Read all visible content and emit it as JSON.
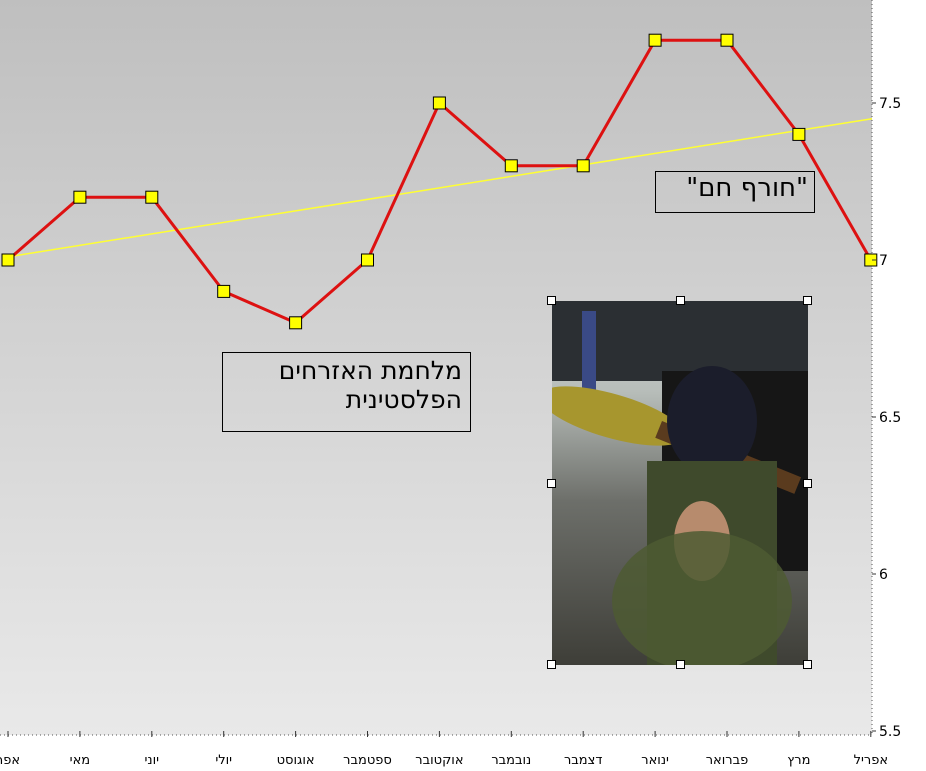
{
  "chart_data": {
    "type": "line",
    "categories": [
      "אפר",
      "מאי",
      "יוני",
      "יולי",
      "אוגוסט",
      "ספטמבר",
      "אוקטובר",
      "נובמבר",
      "דצמבר",
      "ינואר",
      "פברואר",
      "מרץ",
      "אפריל"
    ],
    "series": [
      {
        "values": [
          7.0,
          7.2,
          7.2,
          6.9,
          6.8,
          7.0,
          7.5,
          7.3,
          7.3,
          7.7,
          7.7,
          7.4,
          7.0
        ],
        "color": "#dd1111"
      }
    ],
    "trendline": {
      "start": 7.01,
      "end": 7.45,
      "color": "#ffff33"
    },
    "y_ticks": [
      "5.5",
      "6",
      "6.5",
      "7",
      "7.5"
    ],
    "ylim": [
      5.5,
      7.8
    ],
    "y_axis_side": "right",
    "marker_color": "#ffff00",
    "grid": false,
    "annotations": [
      {
        "text": "\"חורף חם\""
      },
      {
        "lines": [
          "מלחמת האזרחים",
          "הפלסטינית"
        ]
      }
    ]
  }
}
